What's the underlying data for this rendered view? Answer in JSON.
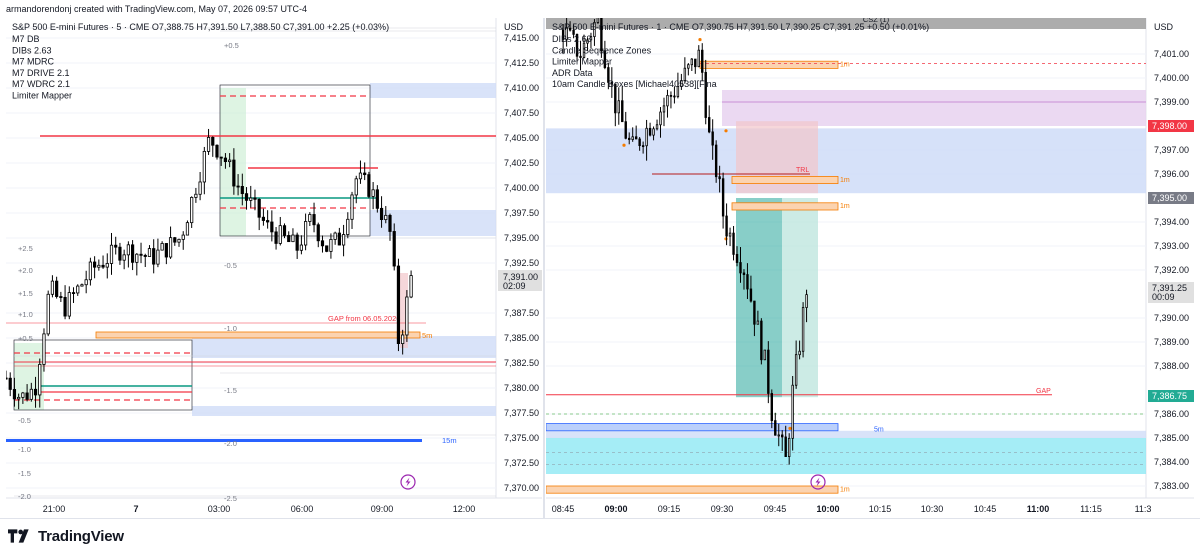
{
  "header": {
    "credit": "armandorendonj created with TradingView.com, May 07, 2026 09:57 UTC-4"
  },
  "footer": {
    "brand": "TradingView"
  },
  "colors": {
    "up_candle": "#000000",
    "down_candle": "#000000",
    "red_line": "#f23645",
    "green_line": "#089981",
    "blue_zone": "#cfdcf8",
    "orange_box": "#f57c00",
    "purple_zone": "#e7d2f0",
    "cyan_zone": "#8ee9f4",
    "teal_zone": "#26a69a",
    "pink_zone": "#f2c6cb",
    "gray_bar": "#9e9e9e",
    "price_label_gray": "#e0e0e0",
    "price_label_green": "#22ab94",
    "price_label_red": "#f23645",
    "price_label_dark": "#787b86",
    "lightning": "#9c27b0"
  },
  "chart_data": [
    {
      "type": "candlestick",
      "title": "S&P 500 E-mini Futures · 5 · CME",
      "ohlc": {
        "open": "O7,388.75",
        "high": "H7,391.50",
        "low": "L7,388.50",
        "close": "C7,391.00",
        "change": "+2.25 (+0.03%)"
      },
      "indicators": [
        "M7 DB",
        "DIBs 2.63",
        "M7 MDRC",
        "M7 DRIVE 2.1",
        "M7 WDRC 2.1",
        "Limiter Mapper"
      ],
      "currency": "USD",
      "y_ticks": [
        "7,415.00",
        "7,412.50",
        "7,410.00",
        "7,407.50",
        "7,405.00",
        "7,402.50",
        "7,400.00",
        "7,397.50",
        "7,395.00",
        "7,392.50",
        "7,387.50",
        "7,385.00",
        "7,382.50",
        "7,380.00",
        "7,377.50",
        "7,375.00",
        "7,372.50",
        "7,370.00"
      ],
      "ylim": [
        7369,
        7417
      ],
      "x_ticks": [
        "21:00",
        "7",
        "03:00",
        "06:00",
        "09:00",
        "12:00"
      ],
      "last_price": {
        "price": "7,391.00",
        "countdown": "02:09",
        "value": 7391.0
      },
      "levels": [
        {
          "label": "GAP from 06.05.2026",
          "value": 7386.5
        },
        {
          "label": "5m",
          "value": 7385.3
        },
        {
          "label": "15m",
          "value": 7374.8
        }
      ],
      "std_labels": [
        "+0.5",
        "-0.5",
        "-1.0",
        "-1.5",
        "-2.0",
        "-2.5",
        "+2.5",
        "+2.0",
        "+1.5",
        "+1.0",
        "+0.5",
        "-0.5",
        "-1.0",
        "-1.5",
        "-2.0"
      ],
      "close_path": [
        [
          "20:00",
          7381
        ],
        [
          "20:30",
          7379
        ],
        [
          "21:00",
          7380
        ],
        [
          "21:30",
          7390
        ],
        [
          "22:00",
          7388
        ],
        [
          "23:00",
          7392
        ],
        [
          "00:00",
          7394
        ],
        [
          "01:00",
          7393
        ],
        [
          "02:00",
          7395
        ],
        [
          "02:30",
          7400
        ],
        [
          "03:00",
          7405
        ],
        [
          "03:30",
          7403
        ],
        [
          "04:00",
          7400
        ],
        [
          "05:00",
          7396
        ],
        [
          "06:00",
          7394
        ],
        [
          "06:30",
          7397
        ],
        [
          "07:00",
          7394
        ],
        [
          "07:30",
          7395
        ],
        [
          "08:00",
          7401
        ],
        [
          "08:30",
          7400
        ],
        [
          "09:00",
          7397
        ],
        [
          "09:15",
          7395
        ],
        [
          "09:30",
          7384
        ],
        [
          "09:55",
          7391
        ]
      ]
    },
    {
      "type": "candlestick",
      "title": "S&P 500 E-mini Futures · 1 · CME",
      "ohlc": {
        "open": "O7,390.75",
        "high": "H7,391.50",
        "low": "L7,390.25",
        "close": "C7,391.25",
        "change": "+0.50 (+0.01%)"
      },
      "indicators": [
        "DIBs 2.63",
        "Candle Sequence Zones",
        "Limiter Mapper",
        "ADR Data",
        "10am Candle Boxes [Michael40538][Fina"
      ],
      "currency": "USD",
      "y_ticks": [
        "7,401.00",
        "7,400.00",
        "7,399.00",
        "7,397.00",
        "7,396.00",
        "7,394.00",
        "7,393.00",
        "7,392.00",
        "7,390.00",
        "7,389.00",
        "7,388.00",
        "7,386.00",
        "7,385.00",
        "7,384.00",
        "7,383.00"
      ],
      "ylim": [
        7382.5,
        7402.5
      ],
      "x_ticks": [
        "08:45",
        "09:00",
        "09:15",
        "09:30",
        "09:45",
        "10:00",
        "10:15",
        "10:30",
        "10:45",
        "11:00",
        "11:15",
        "11:3"
      ],
      "price_labels": [
        {
          "text": "7,398.00",
          "value": 7398.0,
          "style": "red"
        },
        {
          "text": "7,395.00",
          "value": 7395.0,
          "style": "dark"
        },
        {
          "text": "7,391.25",
          "sub": "00:09",
          "value": 7391.25,
          "style": "gray"
        },
        {
          "text": "7,386.75",
          "value": 7386.75,
          "style": "green"
        }
      ],
      "levels": [
        {
          "label": "CSZ (1)",
          "value": 7402.2
        },
        {
          "label": "1m",
          "value": 7400.6
        },
        {
          "label": "TRL",
          "value": 7396.0
        },
        {
          "label": "1m",
          "value": 7395.8
        },
        {
          "label": "1m",
          "value": 7394.7
        },
        {
          "label": "GAP",
          "value": 7386.8
        },
        {
          "label": "5m",
          "value": 7385.4
        },
        {
          "label": "1m",
          "value": 7382.9
        }
      ],
      "close_path": [
        [
          "08:45",
          7402
        ],
        [
          "08:50",
          7401
        ],
        [
          "08:55",
          7402.5
        ],
        [
          "09:00",
          7399
        ],
        [
          "09:05",
          7397
        ],
        [
          "09:10",
          7398
        ],
        [
          "09:15",
          7399
        ],
        [
          "09:20",
          7400
        ],
        [
          "09:25",
          7401
        ],
        [
          "09:28",
          7397
        ],
        [
          "09:30",
          7396
        ],
        [
          "09:32",
          7394
        ],
        [
          "09:35",
          7393
        ],
        [
          "09:38",
          7392
        ],
        [
          "09:41",
          7390
        ],
        [
          "09:44",
          7388
        ],
        [
          "09:46",
          7386
        ],
        [
          "09:48",
          7385
        ],
        [
          "09:50",
          7384
        ],
        [
          "09:52",
          7387
        ],
        [
          "09:54",
          7389
        ],
        [
          "09:56",
          7391.25
        ]
      ]
    }
  ]
}
